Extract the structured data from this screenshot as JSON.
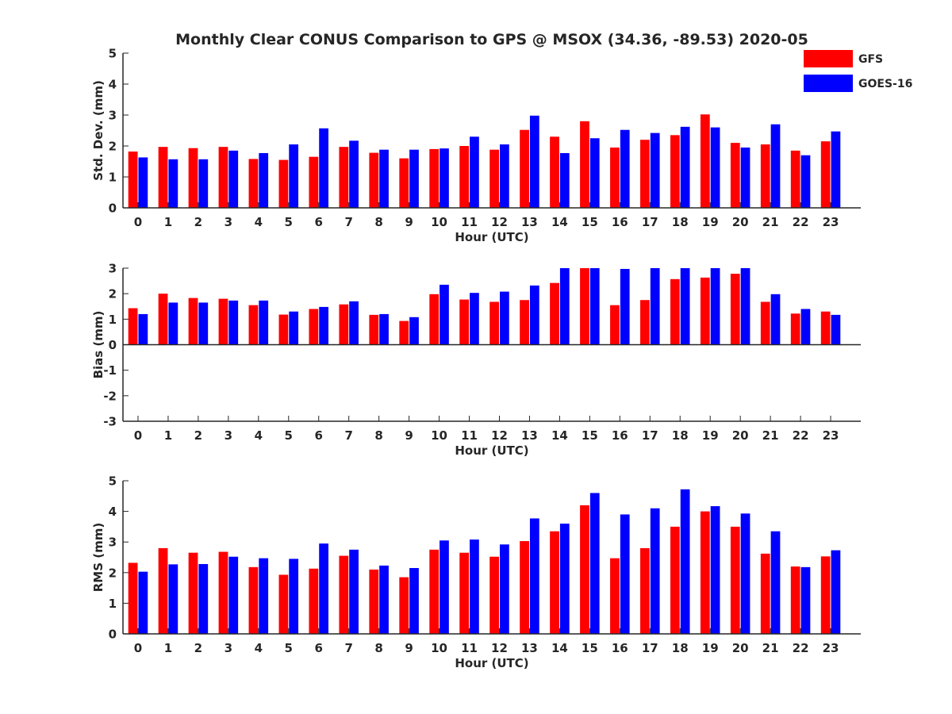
{
  "title": "Monthly Clear CONUS Comparison to GPS @ MSOX (34.36, -89.53) 2020-05",
  "legend": {
    "position": "top-right",
    "entries": [
      {
        "name": "GFS",
        "color": "#ff0000"
      },
      {
        "name": "GOES-16",
        "color": "#0000ff"
      }
    ]
  },
  "chart_data": [
    {
      "type": "bar",
      "xlabel": "Hour (UTC)",
      "ylabel": "Std. Dev. (mm)",
      "ylim": [
        0,
        5
      ],
      "yticks": [
        0,
        1,
        2,
        3,
        4,
        5
      ],
      "categories": [
        "0",
        "1",
        "2",
        "3",
        "4",
        "5",
        "6",
        "7",
        "8",
        "9",
        "10",
        "11",
        "12",
        "13",
        "14",
        "15",
        "16",
        "17",
        "18",
        "19",
        "20",
        "21",
        "22",
        "23"
      ],
      "series": [
        {
          "name": "GFS",
          "color": "#ff0000",
          "values": [
            1.82,
            1.97,
            1.93,
            1.97,
            1.58,
            1.55,
            1.65,
            1.97,
            1.78,
            1.6,
            1.9,
            2.0,
            1.88,
            2.52,
            2.3,
            2.8,
            1.95,
            2.2,
            2.35,
            3.02,
            2.1,
            2.05,
            1.85,
            2.15
          ]
        },
        {
          "name": "GOES-16",
          "color": "#0000ff",
          "values": [
            1.63,
            1.57,
            1.57,
            1.85,
            1.77,
            2.05,
            2.57,
            2.17,
            1.88,
            1.88,
            1.92,
            2.3,
            2.05,
            2.98,
            1.77,
            2.25,
            2.52,
            2.42,
            2.62,
            2.6,
            1.95,
            2.7,
            1.7,
            2.47
          ]
        }
      ]
    },
    {
      "type": "bar",
      "xlabel": "Hour (UTC)",
      "ylabel": "Bias (mm)",
      "ylim": [
        -3,
        3
      ],
      "yticks": [
        -3,
        -2,
        -1,
        0,
        1,
        2,
        3
      ],
      "categories": [
        "0",
        "1",
        "2",
        "3",
        "4",
        "5",
        "6",
        "7",
        "8",
        "9",
        "10",
        "11",
        "12",
        "13",
        "14",
        "15",
        "16",
        "17",
        "18",
        "19",
        "20",
        "21",
        "22",
        "23"
      ],
      "series": [
        {
          "name": "GFS",
          "color": "#ff0000",
          "values": [
            1.43,
            2.0,
            1.83,
            1.8,
            1.55,
            1.18,
            1.4,
            1.58,
            1.17,
            0.93,
            1.98,
            1.77,
            1.68,
            1.75,
            2.42,
            3.0,
            1.55,
            1.75,
            2.57,
            2.63,
            2.78,
            1.68,
            1.22,
            1.3
          ]
        },
        {
          "name": "GOES-16",
          "color": "#0000ff",
          "values": [
            1.2,
            1.65,
            1.65,
            1.73,
            1.73,
            1.3,
            1.48,
            1.7,
            1.2,
            1.08,
            2.35,
            2.03,
            2.08,
            2.32,
            3.0,
            3.0,
            2.97,
            3.0,
            3.0,
            3.0,
            3.0,
            1.98,
            1.4,
            1.17
          ]
        }
      ]
    },
    {
      "type": "bar",
      "xlabel": "Hour (UTC)",
      "ylabel": "RMS (mm)",
      "ylim": [
        0,
        5
      ],
      "yticks": [
        0,
        1,
        2,
        3,
        4,
        5
      ],
      "categories": [
        "0",
        "1",
        "2",
        "3",
        "4",
        "5",
        "6",
        "7",
        "8",
        "9",
        "10",
        "11",
        "12",
        "13",
        "14",
        "15",
        "16",
        "17",
        "18",
        "19",
        "20",
        "21",
        "22",
        "23"
      ],
      "series": [
        {
          "name": "GFS",
          "color": "#ff0000",
          "values": [
            2.32,
            2.8,
            2.65,
            2.68,
            2.18,
            1.93,
            2.13,
            2.55,
            2.1,
            1.85,
            2.75,
            2.65,
            2.52,
            3.03,
            3.35,
            4.2,
            2.47,
            2.8,
            3.5,
            4.0,
            3.5,
            2.62,
            2.2,
            2.53
          ]
        },
        {
          "name": "GOES-16",
          "color": "#0000ff",
          "values": [
            2.03,
            2.27,
            2.28,
            2.52,
            2.47,
            2.45,
            2.95,
            2.75,
            2.23,
            2.15,
            3.05,
            3.08,
            2.92,
            3.77,
            3.6,
            4.6,
            3.9,
            4.1,
            4.72,
            4.17,
            3.93,
            3.35,
            2.18,
            2.73
          ]
        }
      ]
    }
  ]
}
